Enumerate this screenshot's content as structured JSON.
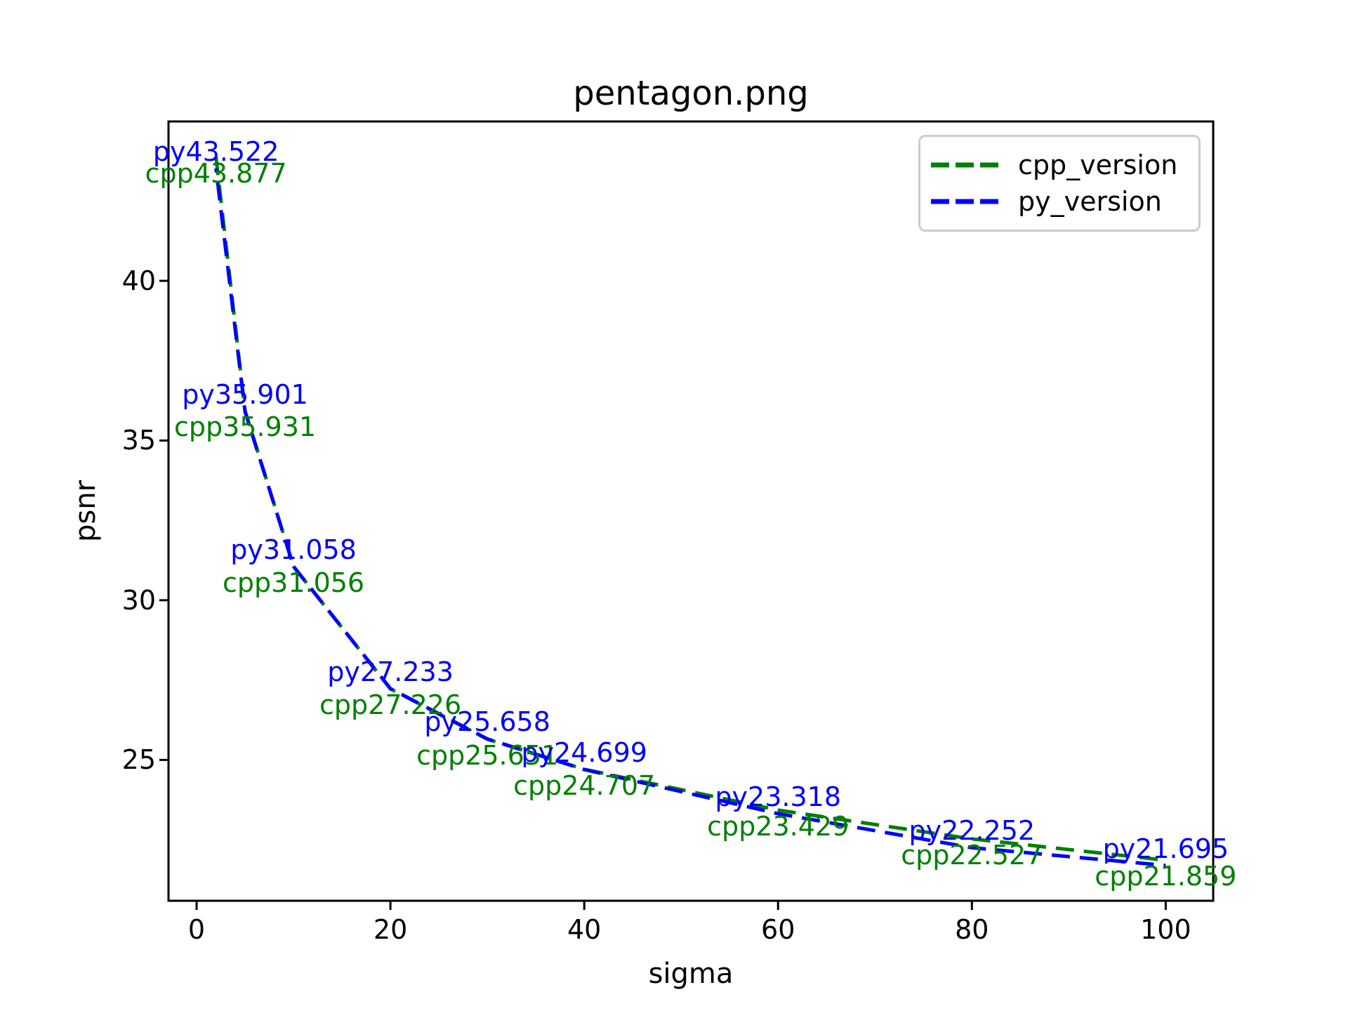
{
  "window": {
    "title": "pentagon.png"
  },
  "chart_data": {
    "type": "line",
    "title": "pentagon.png",
    "xlabel": "sigma",
    "ylabel": "psnr",
    "xlim": [
      -2.9,
      104.9
    ],
    "ylim": [
      20.59,
      44.99
    ],
    "xticks": [
      0,
      20,
      40,
      60,
      80,
      100
    ],
    "yticks": [
      25,
      30,
      35,
      40
    ],
    "grid": false,
    "legend_position": "upper right",
    "x": [
      2,
      5,
      10,
      20,
      30,
      40,
      60,
      80,
      100
    ],
    "series": [
      {
        "name": "cpp_version",
        "color": "#008000",
        "linestyle": "dashed",
        "values": [
          43.877,
          35.931,
          31.056,
          27.226,
          25.651,
          24.707,
          23.429,
          22.527,
          21.859
        ]
      },
      {
        "name": "py_version",
        "color": "#0000ff",
        "linestyle": "dashed",
        "values": [
          43.522,
          35.901,
          31.058,
          27.233,
          25.658,
          24.699,
          23.318,
          22.252,
          21.695
        ]
      }
    ],
    "annotations": [
      {
        "x": 2,
        "y": 43.522,
        "text": "py43.522",
        "color": "#0000ff",
        "placement": "above"
      },
      {
        "x": 2,
        "y": 43.877,
        "text": "cpp43.877",
        "color": "#008000",
        "placement": "below"
      },
      {
        "x": 5,
        "y": 35.901,
        "text": "py35.901",
        "color": "#0000ff",
        "placement": "above"
      },
      {
        "x": 5,
        "y": 35.931,
        "text": "cpp35.931",
        "color": "#008000",
        "placement": "below"
      },
      {
        "x": 10,
        "y": 31.058,
        "text": "py31.058",
        "color": "#0000ff",
        "placement": "above"
      },
      {
        "x": 10,
        "y": 31.056,
        "text": "cpp31.056",
        "color": "#008000",
        "placement": "below"
      },
      {
        "x": 20,
        "y": 27.233,
        "text": "py27.233",
        "color": "#0000ff",
        "placement": "above"
      },
      {
        "x": 20,
        "y": 27.226,
        "text": "cpp27.226",
        "color": "#008000",
        "placement": "below"
      },
      {
        "x": 30,
        "y": 25.658,
        "text": "py25.658",
        "color": "#0000ff",
        "placement": "above"
      },
      {
        "x": 30,
        "y": 25.651,
        "text": "cpp25.651",
        "color": "#008000",
        "placement": "below"
      },
      {
        "x": 40,
        "y": 24.699,
        "text": "py24.699",
        "color": "#0000ff",
        "placement": "above"
      },
      {
        "x": 40,
        "y": 24.707,
        "text": "cpp24.707",
        "color": "#008000",
        "placement": "below"
      },
      {
        "x": 60,
        "y": 23.318,
        "text": "py23.318",
        "color": "#0000ff",
        "placement": "above"
      },
      {
        "x": 60,
        "y": 23.429,
        "text": "cpp23.429",
        "color": "#008000",
        "placement": "below"
      },
      {
        "x": 80,
        "y": 22.252,
        "text": "py22.252",
        "color": "#0000ff",
        "placement": "above"
      },
      {
        "x": 80,
        "y": 22.527,
        "text": "cpp22.527",
        "color": "#008000",
        "placement": "below"
      },
      {
        "x": 100,
        "y": 21.695,
        "text": "py21.695",
        "color": "#0000ff",
        "placement": "above"
      },
      {
        "x": 100,
        "y": 21.859,
        "text": "cpp21.859",
        "color": "#008000",
        "placement": "below"
      }
    ]
  },
  "legend": {
    "items": [
      {
        "label": "cpp_version",
        "color": "#008000"
      },
      {
        "label": "py_version",
        "color": "#0000ff"
      }
    ]
  }
}
